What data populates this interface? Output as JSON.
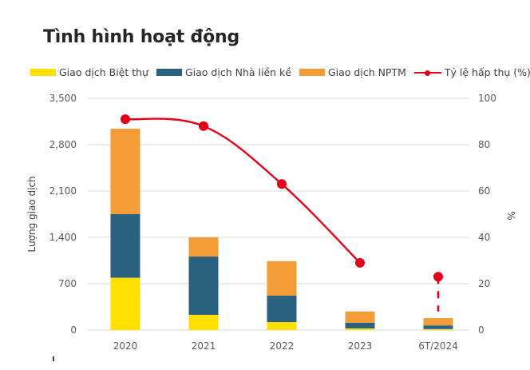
{
  "chart_data": {
    "type": "bar",
    "stacked": true,
    "title": "Tình hình hoạt động",
    "categories": [
      "2020",
      "2021",
      "2022",
      "2023",
      "6T/2024"
    ],
    "series": [
      {
        "name": "Giao dịch Biệt thự",
        "type": "bar",
        "axis": "left",
        "color": "#ffe000",
        "values": [
          790,
          230,
          120,
          25,
          15
        ]
      },
      {
        "name": "Giao dịch Nhà liền kề",
        "type": "bar",
        "axis": "left",
        "color": "#2a6080",
        "values": [
          960,
          880,
          400,
          85,
          55
        ]
      },
      {
        "name": "Giao dịch NPTM",
        "type": "bar",
        "axis": "left",
        "color": "#f39c38",
        "values": [
          1290,
          290,
          520,
          170,
          110
        ]
      },
      {
        "name": "Tỷ lệ hấp thụ (%)",
        "type": "line",
        "axis": "right",
        "color": "#e3001b",
        "values": [
          91,
          88,
          63,
          29,
          23
        ],
        "dashed_last_segment": true
      }
    ],
    "ylabel": "Lượng giao dịch",
    "y2label": "%",
    "xlabel": "",
    "ylim": [
      0,
      3500
    ],
    "y2lim": [
      0,
      100
    ],
    "yticks": [
      "0",
      "700",
      "1,400",
      "2,100",
      "2,800",
      "3,500"
    ],
    "ytick_values": [
      0,
      700,
      1400,
      2100,
      2800,
      3500
    ],
    "y2ticks": [
      "0",
      "20",
      "40",
      "60",
      "80",
      "100"
    ],
    "y2tick_values": [
      0,
      20,
      40,
      60,
      80,
      100
    ],
    "grid": true,
    "legend_position": "top"
  }
}
